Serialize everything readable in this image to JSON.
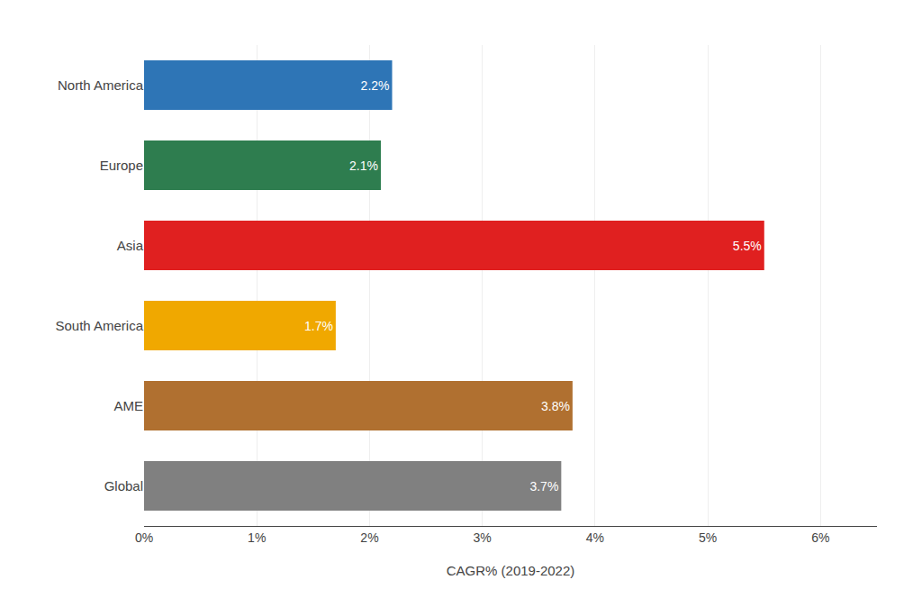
{
  "chart_data": {
    "type": "bar",
    "orientation": "horizontal",
    "categories": [
      "North America",
      "Europe",
      "Asia",
      "South America",
      "AME",
      "Global"
    ],
    "values": [
      2.2,
      2.1,
      5.5,
      1.7,
      3.8,
      3.7
    ],
    "value_labels": [
      "2.2%",
      "2.1%",
      "5.5%",
      "1.7%",
      "3.8%",
      "3.7%"
    ],
    "data_labels": true,
    "colors": [
      "#2e75b6",
      "#2e7d4f",
      "#e02020",
      "#f0a800",
      "#b07030",
      "#808080"
    ],
    "xlabel": "CAGR% (2019-2022)",
    "xlim": [
      0,
      6.5
    ],
    "xticks": [
      {
        "value": 0,
        "label": "0%"
      },
      {
        "value": 1,
        "label": "1%"
      },
      {
        "value": 2,
        "label": "2%"
      },
      {
        "value": 3,
        "label": "3%"
      },
      {
        "value": 4,
        "label": "4%"
      },
      {
        "value": 5,
        "label": "5%"
      },
      {
        "value": 6,
        "label": "6%"
      }
    ],
    "grid": true
  }
}
